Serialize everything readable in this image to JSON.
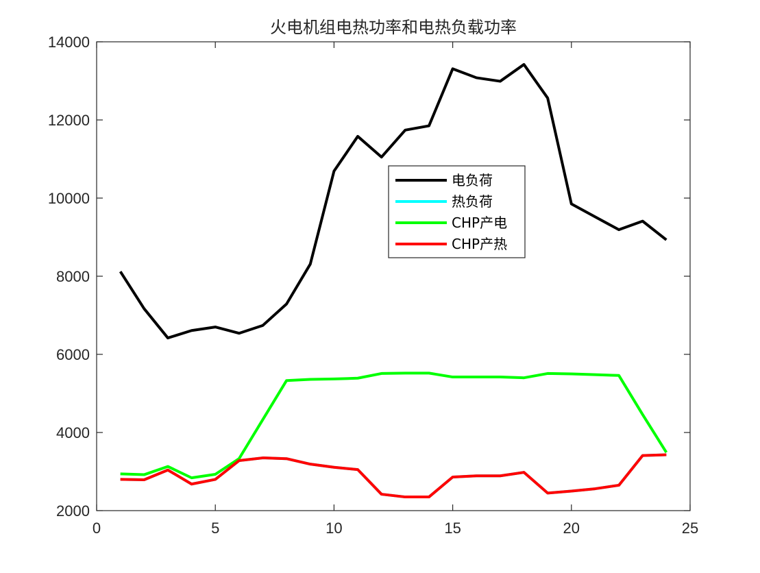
{
  "chart_data": {
    "type": "line",
    "title": "火电机组电热功率和电热负载功率",
    "xlabel": "",
    "ylabel": "",
    "xlim": [
      0,
      25
    ],
    "ylim": [
      2000,
      14000
    ],
    "xticks": [
      0,
      5,
      10,
      15,
      20,
      25
    ],
    "yticks": [
      2000,
      4000,
      6000,
      8000,
      10000,
      12000,
      14000
    ],
    "grid": false,
    "legend_position": "center",
    "x": [
      1,
      2,
      3,
      4,
      5,
      6,
      7,
      8,
      9,
      10,
      11,
      12,
      13,
      14,
      15,
      16,
      17,
      18,
      19,
      20,
      21,
      22,
      23,
      24
    ],
    "series": [
      {
        "name": "电负荷",
        "color": "#000000",
        "values": [
          8120,
          7170,
          6420,
          6610,
          6700,
          6540,
          6740,
          7290,
          8310,
          10690,
          11580,
          11050,
          11740,
          11850,
          13310,
          13080,
          12990,
          13420,
          12560,
          9850,
          9520,
          9190,
          9410,
          8930
        ]
      },
      {
        "name": "热负荷",
        "color": "#00ffff",
        "values": [
          2800,
          2790,
          3040,
          2680,
          2800,
          3280,
          3350,
          3330,
          3190,
          3110,
          3050,
          2420,
          2350,
          2350,
          2860,
          2890,
          2890,
          2980,
          2450,
          2500,
          2560,
          2650,
          3410,
          3430
        ]
      },
      {
        "name": "CHP产电",
        "color": "#00ff00",
        "values": [
          2940,
          2920,
          3130,
          2840,
          2930,
          3330,
          4330,
          5330,
          5360,
          5370,
          5390,
          5510,
          5520,
          5520,
          5420,
          5420,
          5420,
          5400,
          5510,
          5500,
          5480,
          5460,
          4460,
          3490
        ]
      },
      {
        "name": "CHP产热",
        "color": "#ff0000",
        "values": [
          2800,
          2790,
          3040,
          2680,
          2800,
          3280,
          3350,
          3330,
          3190,
          3110,
          3050,
          2420,
          2350,
          2350,
          2860,
          2890,
          2890,
          2980,
          2450,
          2500,
          2560,
          2650,
          3410,
          3430
        ]
      }
    ]
  }
}
